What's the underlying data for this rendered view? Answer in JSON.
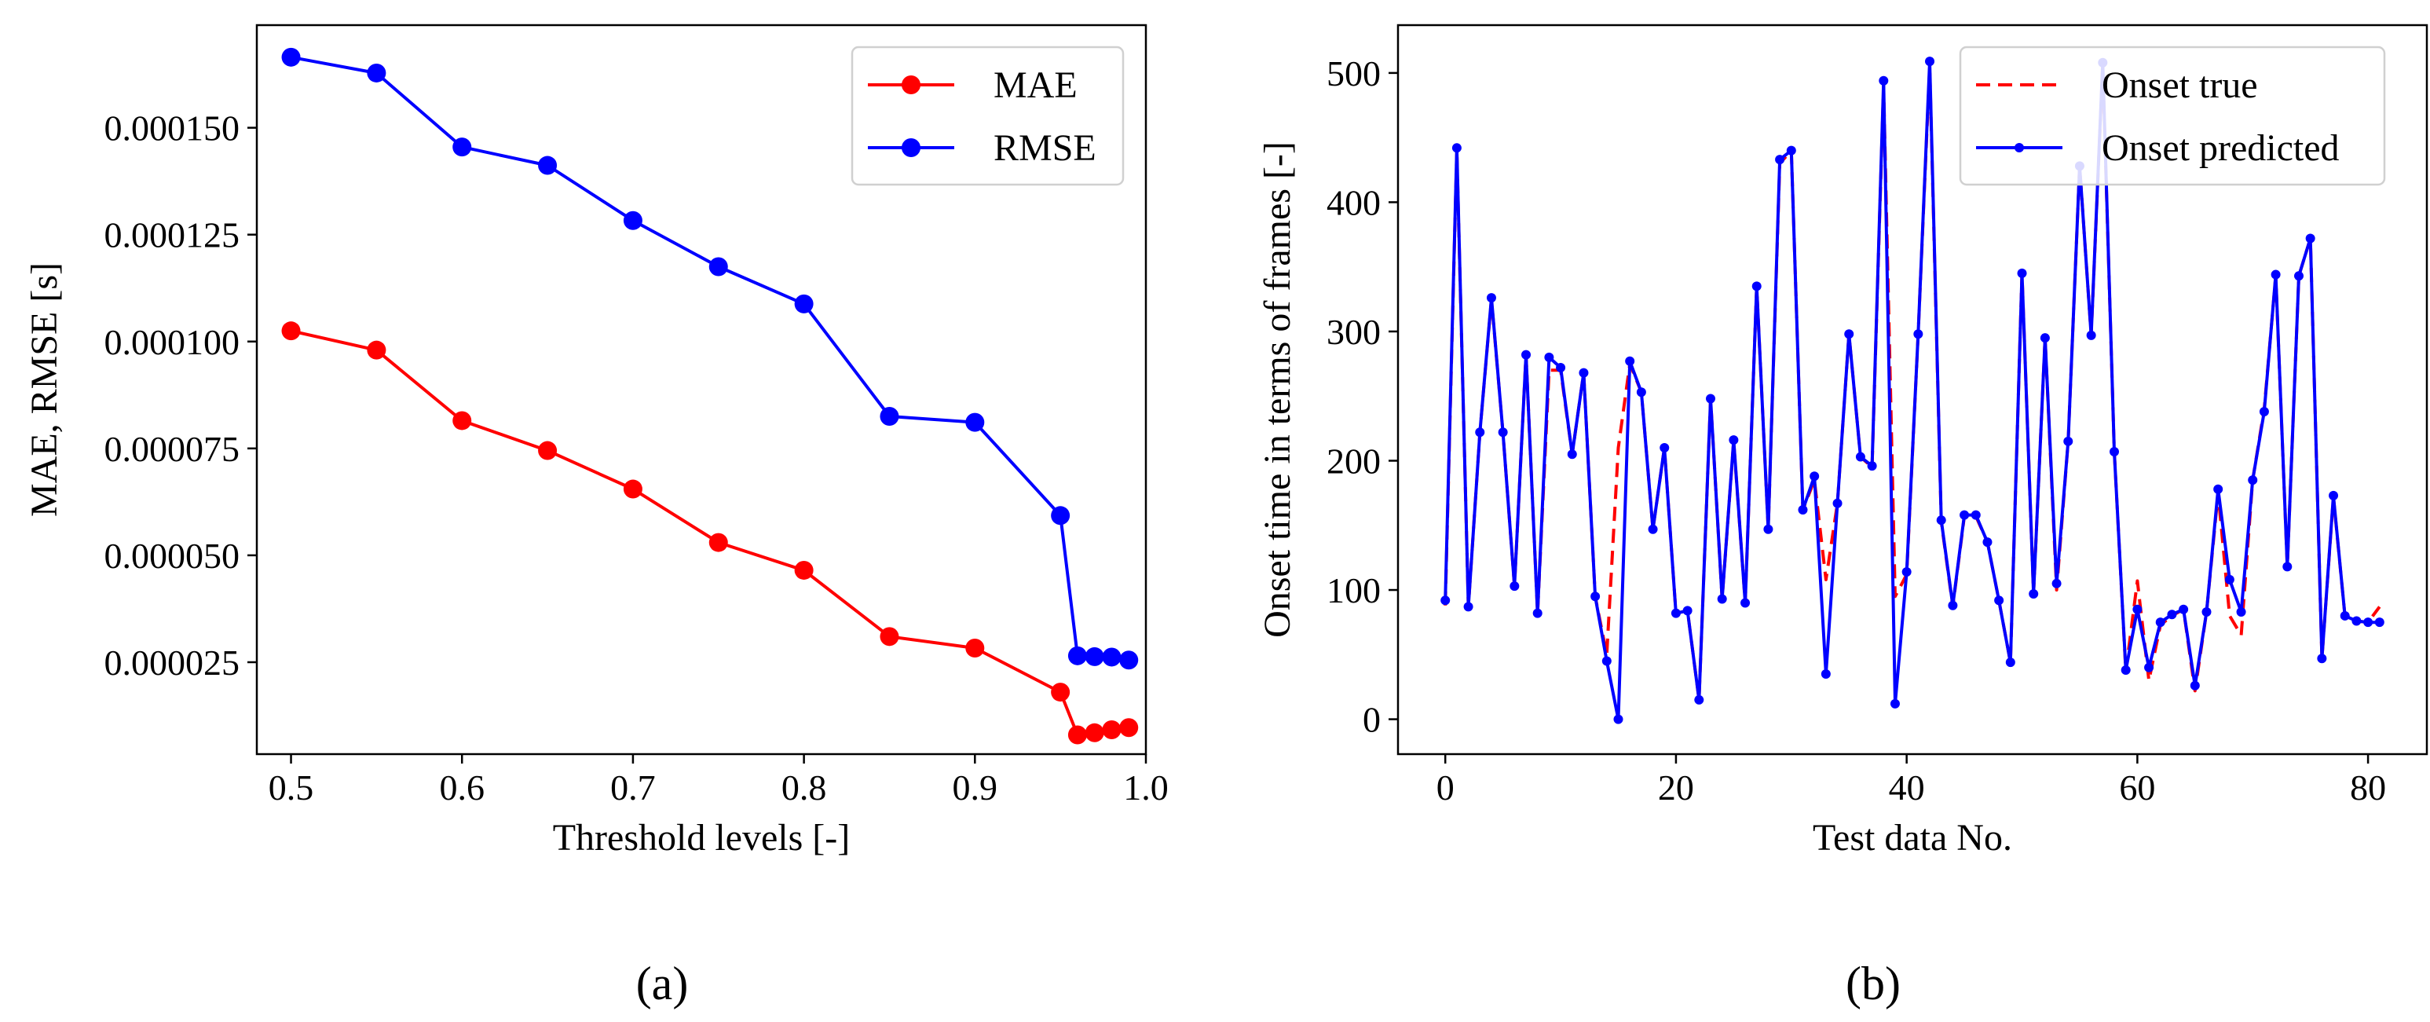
{
  "chart_data": [
    {
      "type": "line",
      "panel_label": "(a)",
      "xlabel": "Threshold levels [-]",
      "ylabel": "MAE, RMSE [s]",
      "xlim": [
        0.48,
        1.0
      ],
      "ylim": [
        3.5e-06,
        0.000174
      ],
      "xticks": [
        0.5,
        0.6,
        0.7,
        0.8,
        0.9,
        1.0
      ],
      "xtick_labels": [
        "0.5",
        "0.6",
        "0.7",
        "0.8",
        "0.9",
        "1.0"
      ],
      "yticks": [
        2.5e-05,
        5e-05,
        7.5e-05,
        0.0001,
        0.000125,
        0.00015
      ],
      "ytick_labels": [
        "0.000025",
        "0.000050",
        "0.000075",
        "0.000100",
        "0.000125",
        "0.000150"
      ],
      "legend_position": "top-right",
      "x": [
        0.5,
        0.55,
        0.6,
        0.65,
        0.7,
        0.75,
        0.8,
        0.85,
        0.9,
        0.95,
        0.96,
        0.97,
        0.98,
        0.99
      ],
      "series": [
        {
          "name": "MAE",
          "color": "#ff0000",
          "marker": "circle",
          "values": [
            0.0001025,
            9.8e-05,
            8.15e-05,
            7.45e-05,
            6.55e-05,
            5.3e-05,
            4.65e-05,
            3.1e-05,
            2.83e-05,
            1.8e-05,
            8e-06,
            8.5e-06,
            9.2e-06,
            9.7e-06
          ]
        },
        {
          "name": "RMSE",
          "color": "#0000ff",
          "marker": "circle",
          "values": [
            0.0001665,
            0.0001628,
            0.0001455,
            0.0001412,
            0.0001283,
            0.0001175,
            0.0001088,
            8.25e-05,
            8.11e-05,
            5.93e-05,
            2.65e-05,
            2.63e-05,
            2.62e-05,
            2.55e-05
          ]
        }
      ]
    },
    {
      "type": "line",
      "panel_label": "(b)",
      "xlabel": "Test data No.",
      "ylabel": "Onset time in terms of frames [-]",
      "xlim": [
        -4.1,
        85.1
      ],
      "ylim": [
        -27,
        537
      ],
      "xticks": [
        0,
        20,
        40,
        60,
        80
      ],
      "xtick_labels": [
        "0",
        "20",
        "40",
        "60",
        "80"
      ],
      "yticks": [
        0,
        100,
        200,
        300,
        400,
        500
      ],
      "ytick_labels": [
        "0",
        "100",
        "200",
        "300",
        "400",
        "500"
      ],
      "legend_position": "top-right",
      "series": [
        {
          "name": "Onset true",
          "color": "#ff0000",
          "style": "dashed",
          "values": [
            88,
            440,
            87,
            222,
            325,
            222,
            103,
            282,
            82,
            270,
            270,
            205,
            268,
            95,
            50,
            210,
            275,
            253,
            147,
            210,
            82,
            84,
            15,
            248,
            93,
            215,
            90,
            335,
            147,
            430,
            440,
            162,
            185,
            108,
            167,
            298,
            203,
            195,
            490,
            95,
            112,
            298,
            505,
            153,
            87,
            157,
            157,
            137,
            92,
            44,
            345,
            97,
            295,
            100,
            215,
            428,
            297,
            505,
            207,
            37,
            107,
            30,
            73,
            80,
            85,
            22,
            83,
            175,
            80,
            65,
            185,
            240,
            343,
            118,
            343,
            372,
            47,
            172,
            80,
            76,
            75,
            87
          ]
        },
        {
          "name": "Onset predicted",
          "color": "#0000ff",
          "style": "solid",
          "marker": "dot",
          "values": [
            92,
            442,
            87,
            222,
            326,
            222,
            103,
            282,
            82,
            280,
            272,
            205,
            268,
            95,
            45,
            0,
            277,
            253,
            147,
            210,
            82,
            84,
            15,
            248,
            93,
            216,
            90,
            335,
            147,
            433,
            440,
            162,
            188,
            35,
            167,
            298,
            203,
            196,
            494,
            12,
            114,
            298,
            509,
            154,
            88,
            158,
            158,
            137,
            92,
            44,
            345,
            97,
            295,
            105,
            215,
            428,
            297,
            508,
            207,
            38,
            85,
            40,
            75,
            81,
            85,
            26,
            83,
            178,
            108,
            83,
            185,
            238,
            344,
            118,
            343,
            372,
            47,
            173,
            80,
            76,
            75,
            75
          ]
        }
      ]
    }
  ]
}
